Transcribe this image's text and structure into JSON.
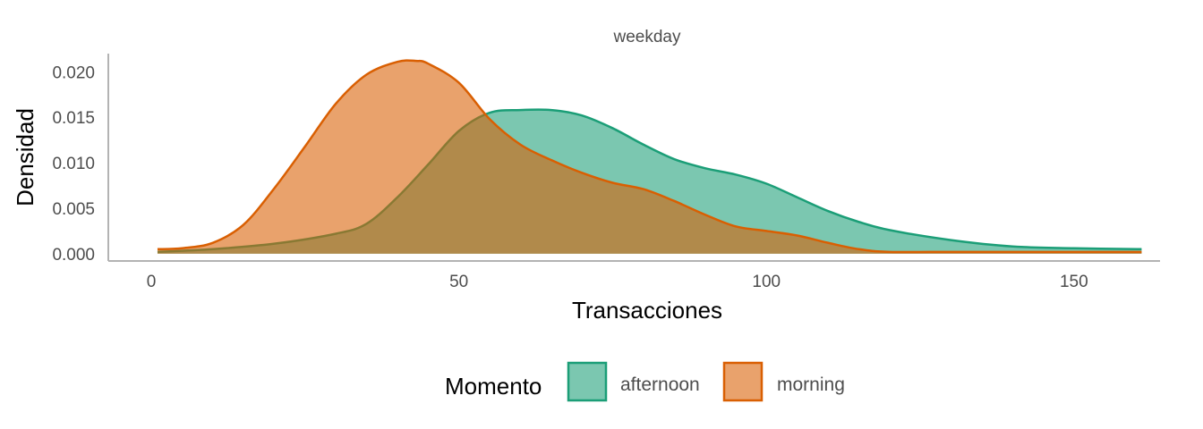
{
  "chart_data": {
    "type": "area",
    "facet_label": "weekday",
    "xlabel": "Transacciones",
    "ylabel": "Densidad",
    "xlim": [
      -7,
      164
    ],
    "ylim": [
      -0.0008,
      0.022
    ],
    "x_ticks": [
      0,
      50,
      100,
      150
    ],
    "x_tick_labels": [
      "0",
      "50",
      "100",
      "150"
    ],
    "y_ticks": [
      0,
      0.005,
      0.01,
      0.015,
      0.02
    ],
    "y_tick_labels": [
      "0.000",
      "0.005",
      "0.010",
      "0.015",
      "0.020"
    ],
    "grid": false,
    "legend": {
      "title": "Momento",
      "position": "bottom",
      "items": [
        "afternoon",
        "morning"
      ]
    },
    "series": [
      {
        "name": "afternoon",
        "fill": "#1b9e77",
        "x": [
          1,
          10,
          20,
          30,
          35,
          40,
          45,
          50,
          55,
          60,
          65,
          70,
          75,
          80,
          85,
          90,
          95,
          100,
          105,
          110,
          115,
          120,
          130,
          140,
          150,
          161
        ],
        "y": [
          0.0002,
          0.0005,
          0.0011,
          0.0022,
          0.0033,
          0.0062,
          0.0098,
          0.0135,
          0.0155,
          0.0158,
          0.0158,
          0.0152,
          0.0138,
          0.012,
          0.0104,
          0.0094,
          0.0087,
          0.0077,
          0.0062,
          0.0047,
          0.0035,
          0.0026,
          0.0015,
          0.0008,
          0.0006,
          0.0005
        ]
      },
      {
        "name": "morning",
        "fill": "#d95f02",
        "x": [
          1,
          5,
          10,
          15,
          20,
          25,
          30,
          35,
          40,
          43,
          45,
          50,
          55,
          60,
          65,
          70,
          75,
          80,
          85,
          90,
          95,
          100,
          105,
          110,
          115,
          120,
          130,
          140,
          150,
          161
        ],
        "y": [
          0.0005,
          0.0006,
          0.0012,
          0.0032,
          0.0072,
          0.0118,
          0.0165,
          0.0197,
          0.0211,
          0.0212,
          0.0209,
          0.0188,
          0.0148,
          0.012,
          0.0103,
          0.0089,
          0.0078,
          0.0071,
          0.0058,
          0.0043,
          0.003,
          0.0025,
          0.002,
          0.0012,
          0.0005,
          0.0002,
          0.0002,
          0.0002,
          0.0002,
          0.0002
        ]
      }
    ]
  }
}
